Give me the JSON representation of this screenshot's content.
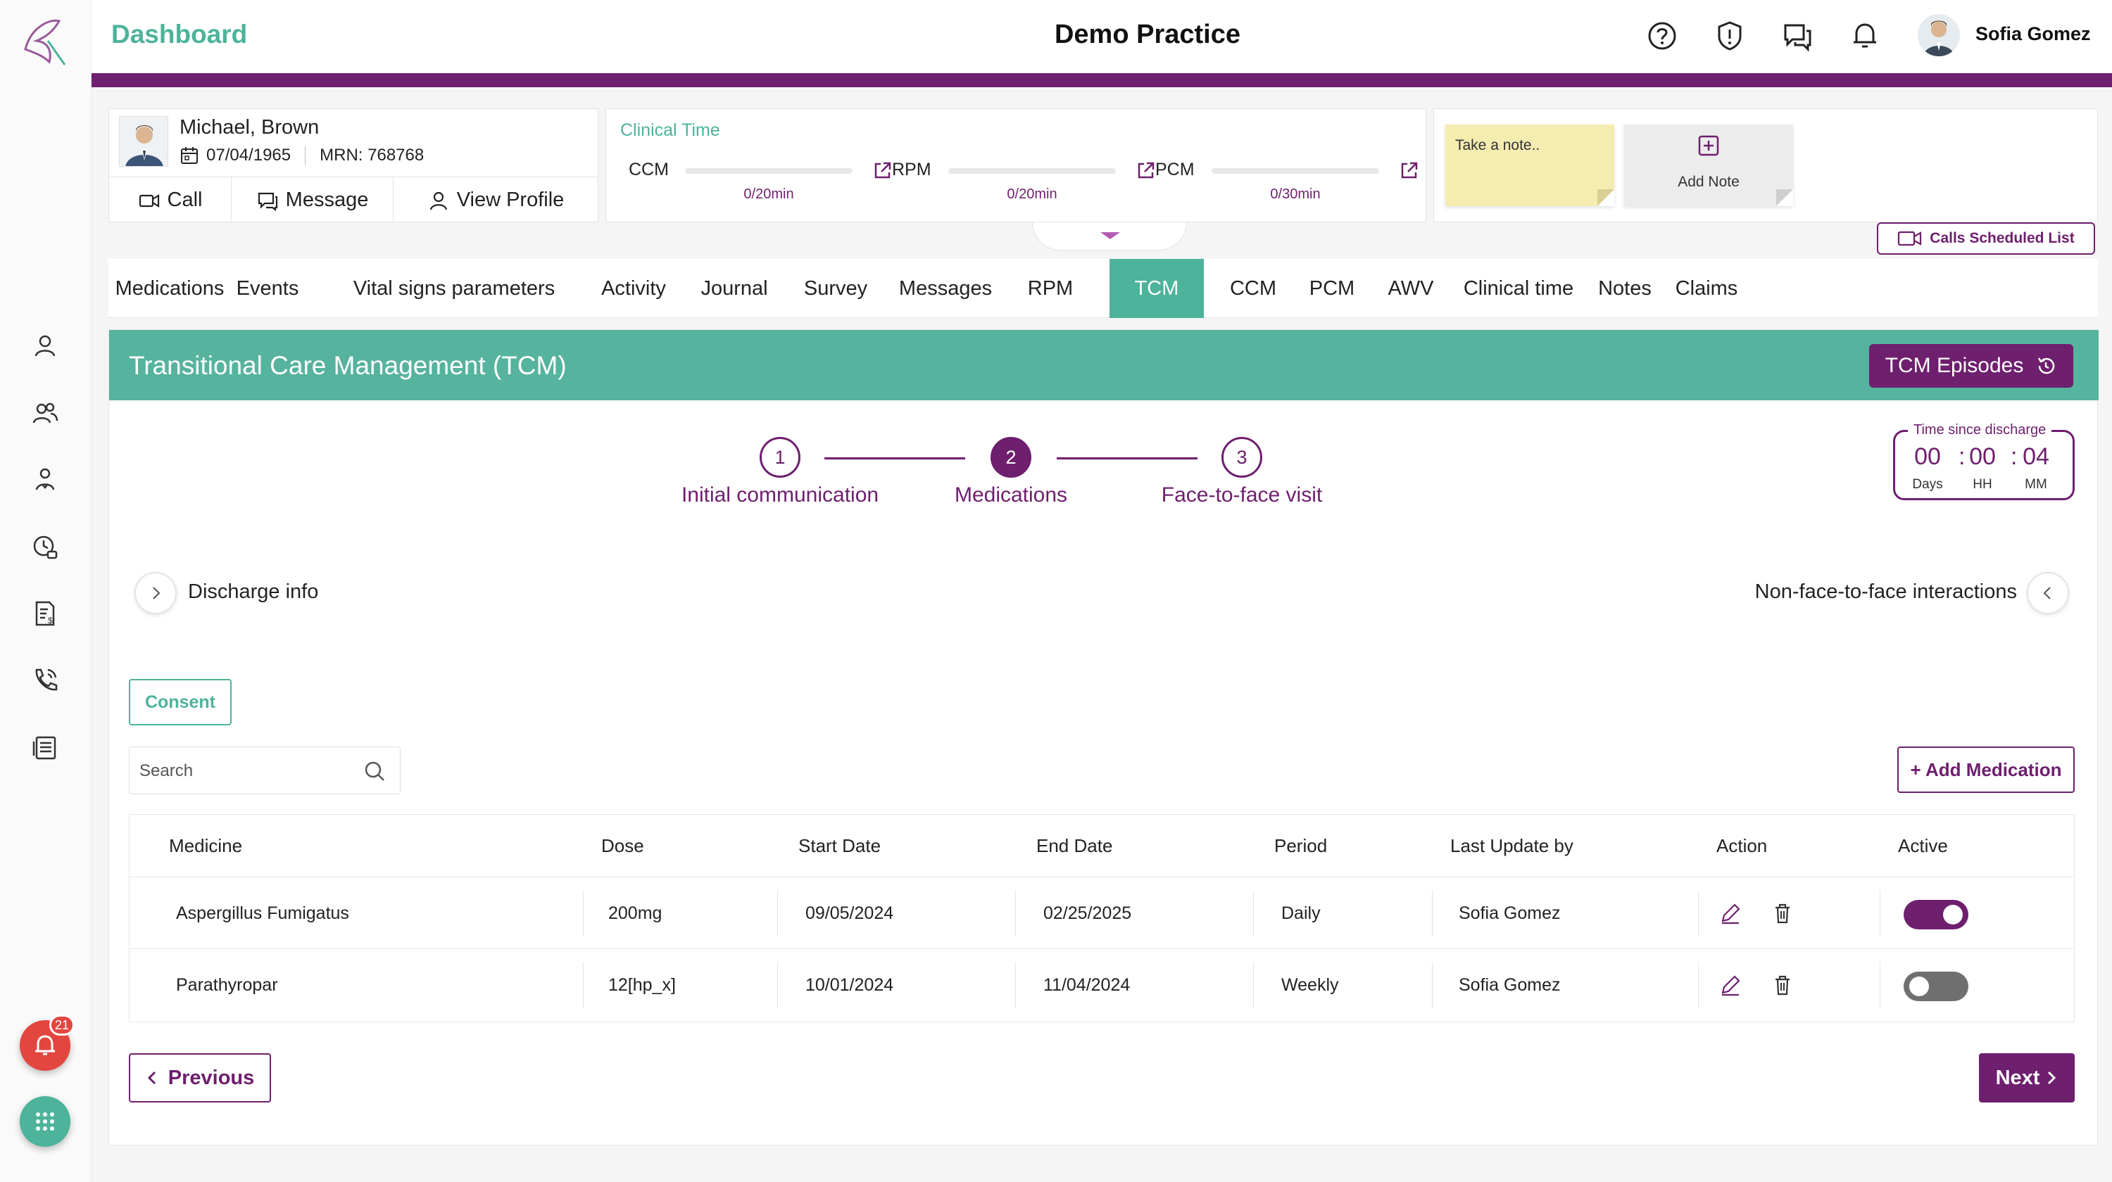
{
  "app": {
    "title": "Dashboard",
    "practice_name": "Demo Practice",
    "user_name": "Sofia Gomez",
    "accent_color": "#4db39b",
    "brand_color": "#6e1f6e"
  },
  "sidebar": {
    "items": [
      {
        "icon": "user-icon"
      },
      {
        "icon": "users-group-icon"
      },
      {
        "icon": "care-team-icon"
      },
      {
        "icon": "clock-lock-icon"
      },
      {
        "icon": "billing-icon"
      },
      {
        "icon": "phone-call-icon"
      },
      {
        "icon": "reports-icon"
      }
    ],
    "alert_count": "21"
  },
  "patient": {
    "name": "Michael, Brown",
    "dob": "07/04/1965",
    "mrn": "MRN: 768768",
    "actions": {
      "call": "Call",
      "message": "Message",
      "view_profile": "View Profile"
    }
  },
  "clinical_time": {
    "title": "Clinical Time",
    "items": [
      {
        "label": "CCM",
        "value": "0/20min",
        "progress": 0
      },
      {
        "label": "RPM",
        "value": "0/20min",
        "progress": 0
      },
      {
        "label": "PCM",
        "value": "0/30min",
        "progress": 0
      }
    ]
  },
  "notes": {
    "placeholder": "Take a note..",
    "add_label": "Add Note"
  },
  "calls_scheduled": "Calls Scheduled List",
  "tabs": [
    "Medications",
    "Events",
    "Vital signs parameters",
    "Activity",
    "Journal",
    "Survey",
    "Messages",
    "RPM",
    "TCM",
    "CCM",
    "PCM",
    "AWV",
    "Clinical time",
    "Notes",
    "Claims"
  ],
  "active_tab": "TCM",
  "tcm": {
    "title": "Transitional Care Management (TCM)",
    "episodes_label": "TCM Episodes",
    "steps": [
      {
        "number": "1",
        "label": "Initial communication",
        "state": "done"
      },
      {
        "number": "2",
        "label": "Medications",
        "state": "current"
      },
      {
        "number": "3",
        "label": "Face-to-face visit",
        "state": "pending"
      }
    ],
    "timer": {
      "title": "Time since discharge",
      "days": "00",
      "hours": "00",
      "minutes": "04",
      "days_label": "Days",
      "hours_label": "HH",
      "minutes_label": "MM"
    },
    "discharge_info": "Discharge info",
    "non_face_to_face": "Non-face-to-face interactions",
    "consent_label": "Consent",
    "search_placeholder": "Search",
    "add_medication_label": "+ Add Medication",
    "table": {
      "columns": [
        "Medicine",
        "Dose",
        "Start Date",
        "End Date",
        "Period",
        "Last Update by",
        "Action",
        "Active"
      ],
      "rows": [
        {
          "medicine": "Aspergillus Fumigatus",
          "dose": "200mg",
          "start": "09/05/2024",
          "end": "02/25/2025",
          "period": "Daily",
          "updated_by": "Sofia Gomez",
          "active": true
        },
        {
          "medicine": "Parathyropar",
          "dose": "12[hp_x]",
          "start": "10/01/2024",
          "end": "11/04/2024",
          "period": "Weekly",
          "updated_by": "Sofia Gomez",
          "active": false
        }
      ]
    },
    "previous_label": "Previous",
    "next_label": "Next"
  }
}
